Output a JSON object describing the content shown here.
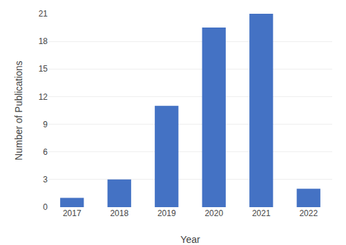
{
  "chart_data": {
    "type": "bar",
    "categories": [
      "2017",
      "2018",
      "2019",
      "2020",
      "2021",
      "2022"
    ],
    "values": [
      1,
      3,
      11,
      19.5,
      21,
      2
    ],
    "color": "#4472C4",
    "xlabel": "Year",
    "ylabel": "Number of Publications",
    "ylim": [
      0,
      21
    ],
    "yticks": [
      0,
      3,
      6,
      9,
      12,
      15,
      18,
      21
    ],
    "grid": true
  }
}
